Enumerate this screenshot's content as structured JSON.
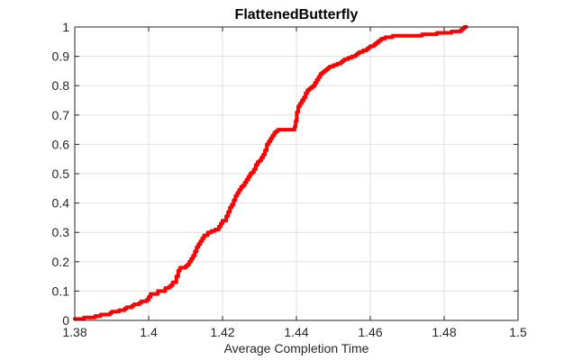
{
  "chart_data": {
    "type": "line",
    "title": "FlattenedButterfly",
    "xlabel": "Average Completion Time",
    "ylabel": "",
    "xlim": [
      1.38,
      1.5
    ],
    "ylim": [
      0,
      1
    ],
    "xticks": [
      1.38,
      1.4,
      1.42,
      1.44,
      1.46,
      1.48,
      1.5
    ],
    "xtick_labels": [
      "1.38",
      "1.4",
      "1.42",
      "1.44",
      "1.46",
      "1.48",
      "1.5"
    ],
    "yticks": [
      0,
      0.1,
      0.2,
      0.3,
      0.4,
      0.5,
      0.6,
      0.7,
      0.8,
      0.9,
      1
    ],
    "ytick_labels": [
      "0",
      "0.1",
      "0.2",
      "0.3",
      "0.4",
      "0.5",
      "0.6",
      "0.7",
      "0.8",
      "0.9",
      "1"
    ],
    "grid": true,
    "box": true,
    "colors": {
      "line": "#ff0000",
      "grid": "#e0e0e0",
      "axis": "#262626"
    },
    "series": [
      {
        "x": [
          1.38,
          1.3825,
          1.385,
          1.3855,
          1.387,
          1.3875,
          1.3895,
          1.39,
          1.3915,
          1.392,
          1.3935,
          1.394,
          1.3955,
          1.396,
          1.3975,
          1.398,
          1.3995,
          1.4,
          1.4005,
          1.4025,
          1.4045,
          1.405,
          1.4055,
          1.406,
          1.4065,
          1.4075,
          1.408,
          1.4085,
          1.4095,
          1.41,
          1.4105,
          1.411,
          1.4115,
          1.412,
          1.4125,
          1.413,
          1.4135,
          1.414,
          1.4145,
          1.415,
          1.416,
          1.417,
          1.418,
          1.419,
          1.4195,
          1.42,
          1.421,
          1.4215,
          1.422,
          1.4225,
          1.423,
          1.4235,
          1.424,
          1.4245,
          1.425,
          1.4255,
          1.426,
          1.4265,
          1.427,
          1.4275,
          1.428,
          1.4285,
          1.429,
          1.4295,
          1.43,
          1.4305,
          1.431,
          1.4315,
          1.432,
          1.4325,
          1.433,
          1.4335,
          1.434,
          1.4345,
          1.435,
          1.4355,
          1.436,
          1.4365,
          1.437,
          1.4375,
          1.438,
          1.439,
          1.4395,
          1.4398,
          1.4401,
          1.4405,
          1.441,
          1.4415,
          1.442,
          1.4425,
          1.443,
          1.4435,
          1.444,
          1.4445,
          1.445,
          1.4455,
          1.446,
          1.4465,
          1.447,
          1.4475,
          1.448,
          1.4485,
          1.449,
          1.45,
          1.4505,
          1.451,
          1.4515,
          1.452,
          1.4525,
          1.453,
          1.4535,
          1.454,
          1.455,
          1.456,
          1.4565,
          1.457,
          1.458,
          1.4585,
          1.459,
          1.4595,
          1.46,
          1.461,
          1.4615,
          1.462,
          1.4625,
          1.463,
          1.464,
          1.465,
          1.466,
          1.467,
          1.4675,
          1.468,
          1.47,
          1.472,
          1.474,
          1.476,
          1.478,
          1.479,
          1.48,
          1.482,
          1.484,
          1.4845,
          1.485,
          1.4855,
          1.486
        ],
        "y": [
          0.005,
          0.01,
          0.01,
          0.015,
          0.02,
          0.02,
          0.025,
          0.03,
          0.03,
          0.035,
          0.04,
          0.045,
          0.05,
          0.055,
          0.06,
          0.065,
          0.07,
          0.08,
          0.09,
          0.1,
          0.11,
          0.11,
          0.115,
          0.12,
          0.13,
          0.15,
          0.17,
          0.18,
          0.18,
          0.185,
          0.19,
          0.2,
          0.21,
          0.22,
          0.235,
          0.25,
          0.26,
          0.27,
          0.28,
          0.29,
          0.3,
          0.305,
          0.31,
          0.32,
          0.33,
          0.34,
          0.355,
          0.37,
          0.385,
          0.395,
          0.41,
          0.425,
          0.435,
          0.445,
          0.455,
          0.46,
          0.47,
          0.48,
          0.49,
          0.5,
          0.505,
          0.515,
          0.53,
          0.54,
          0.545,
          0.555,
          0.565,
          0.58,
          0.6,
          0.61,
          0.62,
          0.63,
          0.64,
          0.645,
          0.65,
          0.65,
          0.65,
          0.65,
          0.65,
          0.65,
          0.65,
          0.65,
          0.66,
          0.68,
          0.71,
          0.73,
          0.74,
          0.75,
          0.76,
          0.775,
          0.785,
          0.79,
          0.795,
          0.8,
          0.81,
          0.82,
          0.83,
          0.84,
          0.845,
          0.85,
          0.855,
          0.86,
          0.865,
          0.87,
          0.87,
          0.875,
          0.875,
          0.88,
          0.885,
          0.89,
          0.89,
          0.895,
          0.9,
          0.905,
          0.91,
          0.915,
          0.92,
          0.92,
          0.925,
          0.93,
          0.935,
          0.94,
          0.945,
          0.95,
          0.955,
          0.96,
          0.965,
          0.965,
          0.97,
          0.97,
          0.97,
          0.97,
          0.97,
          0.97,
          0.975,
          0.975,
          0.98,
          0.98,
          0.98,
          0.985,
          0.985,
          0.99,
          0.995,
          1.0,
          1.0
        ]
      }
    ]
  }
}
